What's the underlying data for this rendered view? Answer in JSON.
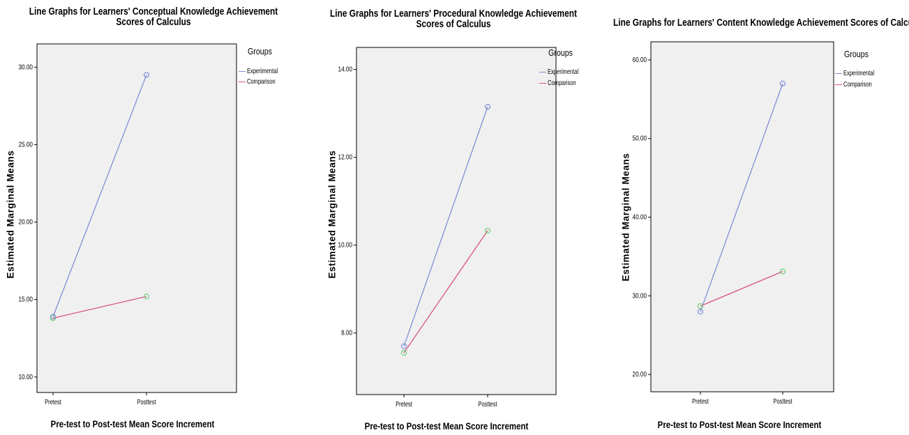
{
  "colors": {
    "experimental": "#7f8fd6",
    "comparison": "#d8547e",
    "marker_comparison": "#6fcf7a",
    "plot_bg": "#f0f0f0"
  },
  "chart_data": [
    {
      "type": "line",
      "title": "Line Graphs for Learners' Conceptual Knowledge Achievement Scores of Calculus",
      "xlabel": "Pre-test to Post-test Mean Score Increment",
      "ylabel": "Estimated Marginal Means",
      "categories": [
        "Pretest",
        "Posttest"
      ],
      "y_ticks": [
        "10.00",
        "15.00",
        "20.00",
        "25.00",
        "30.00"
      ],
      "ylim": [
        9.0,
        31.5
      ],
      "legend_title": "Groups",
      "series": [
        {
          "name": "Experimental",
          "values": [
            13.9,
            29.5
          ]
        },
        {
          "name": "Comparison",
          "values": [
            13.8,
            15.2
          ]
        }
      ]
    },
    {
      "type": "line",
      "title": "Line Graphs for Learners' Procedural Knowledge Achievement Scores of Calculus",
      "xlabel": "Pre-test to Post-test Mean Score Increment",
      "ylabel": "Estimated Marginal Means",
      "categories": [
        "Pretest",
        "Posttest"
      ],
      "y_ticks": [
        "8.00",
        "10.00",
        "12.00",
        "14.00"
      ],
      "ylim": [
        6.6,
        14.5
      ],
      "legend_title": "Groups",
      "series": [
        {
          "name": "Experimental",
          "values": [
            7.7,
            13.15
          ]
        },
        {
          "name": "Comparison",
          "values": [
            7.55,
            10.33
          ]
        }
      ]
    },
    {
      "type": "line",
      "title": "Line Graphs for Learners' Content Knowledge Achievement Scores of Calculus",
      "xlabel": "Pre-test to Post-test Mean Score Increment",
      "ylabel": "Estimated Marginal Means",
      "categories": [
        "Pretest",
        "Posttest"
      ],
      "y_ticks": [
        "20.00",
        "30.00",
        "40.00",
        "50.00",
        "60.00"
      ],
      "ylim": [
        17.8,
        62.3
      ],
      "legend_title": "Groups",
      "series": [
        {
          "name": "Experimental",
          "values": [
            28.0,
            57.0
          ]
        },
        {
          "name": "Comparison",
          "values": [
            28.7,
            33.1
          ]
        }
      ]
    }
  ]
}
